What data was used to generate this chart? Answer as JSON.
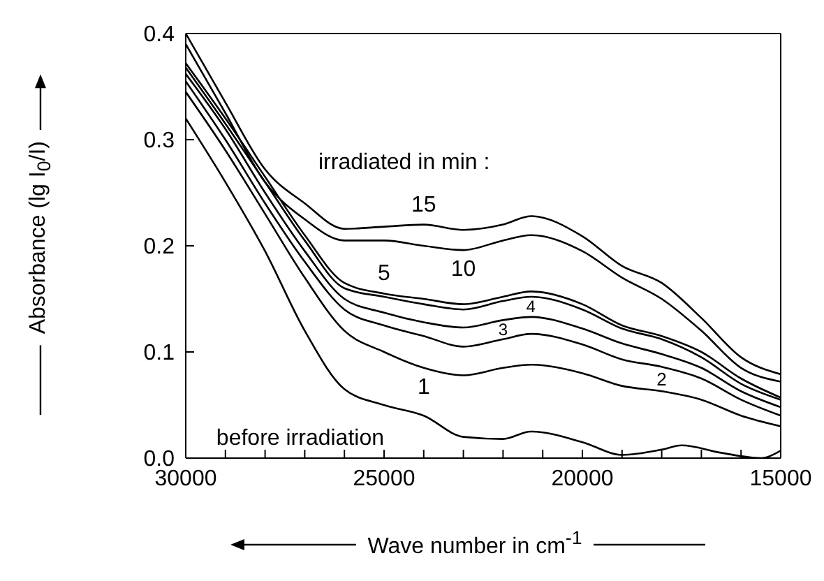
{
  "chart_data": {
    "type": "line",
    "xlabel": "Wave number in cm$^{-1}$",
    "ylabel": "Absorbance (lg I$_{0}$/I)",
    "x": [
      30000,
      29000,
      28000,
      27000,
      26000,
      25000,
      24000,
      23000,
      22000,
      21300,
      20000,
      19000,
      18000,
      17000,
      16000,
      15000
    ],
    "series": [
      {
        "name": "15",
        "color": "#000000",
        "values": [
          0.4,
          0.335,
          0.272,
          0.24,
          0.216,
          0.218,
          0.22,
          0.215,
          0.22,
          0.228,
          0.209,
          0.181,
          0.165,
          0.132,
          0.095,
          0.079
        ]
      },
      {
        "name": "10",
        "color": "#000000",
        "values": [
          0.39,
          0.325,
          0.26,
          0.225,
          0.205,
          0.205,
          0.2,
          0.196,
          0.205,
          0.21,
          0.195,
          0.17,
          0.15,
          0.12,
          0.085,
          0.072
        ]
      },
      {
        "name": "5",
        "color": "#000000",
        "values": [
          0.372,
          0.32,
          0.265,
          0.21,
          0.165,
          0.155,
          0.15,
          0.145,
          0.152,
          0.157,
          0.145,
          0.125,
          0.115,
          0.1,
          0.075,
          0.057
        ]
      },
      {
        "name": "4",
        "color": "#000000",
        "values": [
          0.368,
          0.315,
          0.26,
          0.205,
          0.16,
          0.152,
          0.145,
          0.14,
          0.148,
          0.152,
          0.14,
          0.122,
          0.112,
          0.095,
          0.07,
          0.055
        ]
      },
      {
        "name": "3",
        "color": "#000000",
        "values": [
          0.362,
          0.31,
          0.25,
          0.195,
          0.15,
          0.137,
          0.128,
          0.123,
          0.13,
          0.133,
          0.122,
          0.108,
          0.098,
          0.085,
          0.063,
          0.048
        ]
      },
      {
        "name": "2",
        "color": "#000000",
        "values": [
          0.355,
          0.3,
          0.24,
          0.185,
          0.14,
          0.125,
          0.115,
          0.105,
          0.112,
          0.117,
          0.107,
          0.093,
          0.086,
          0.075,
          0.055,
          0.04
        ]
      },
      {
        "name": "1",
        "color": "#000000",
        "values": [
          0.345,
          0.29,
          0.23,
          0.17,
          0.12,
          0.1,
          0.085,
          0.078,
          0.085,
          0.088,
          0.08,
          0.068,
          0.063,
          0.055,
          0.04,
          0.03
        ]
      },
      {
        "name": "before irradiation",
        "color": "#000000",
        "x": [
          30000,
          29000,
          28000,
          27000,
          26000,
          25000,
          24000,
          23000,
          22000,
          21300,
          20000,
          19000,
          18000,
          17500,
          16500,
          15500,
          15000
        ],
        "values": [
          0.32,
          0.26,
          0.195,
          0.12,
          0.065,
          0.05,
          0.04,
          0.02,
          0.018,
          0.025,
          0.015,
          0.003,
          0.008,
          0.012,
          0.005,
          0.0,
          0.007
        ]
      }
    ],
    "xlim": [
      30000,
      15000
    ],
    "xticks": [
      30000,
      {
        "value": 29000,
        "label": null
      },
      {
        "value": 28000,
        "label": null
      },
      {
        "value": 27000,
        "label": null
      },
      {
        "value": 26000,
        "label": null
      },
      25000,
      {
        "value": 24000,
        "label": null
      },
      {
        "value": 23000,
        "label": null
      },
      {
        "value": 22000,
        "label": null
      },
      {
        "value": 21000,
        "label": null
      },
      20000,
      {
        "value": 19000,
        "label": null
      },
      {
        "value": 18000,
        "label": null
      },
      {
        "value": 17000,
        "label": null
      },
      {
        "value": 16000,
        "label": null
      },
      15000
    ],
    "ylim": [
      0,
      0.4
    ],
    "yticks": [
      {
        "value": 0,
        "label": "0.0"
      },
      0.1,
      0.2,
      0.3,
      0.4
    ],
    "marker": "none",
    "line_style": "solid",
    "annotations": [
      "irradiated in min :"
    ]
  }
}
